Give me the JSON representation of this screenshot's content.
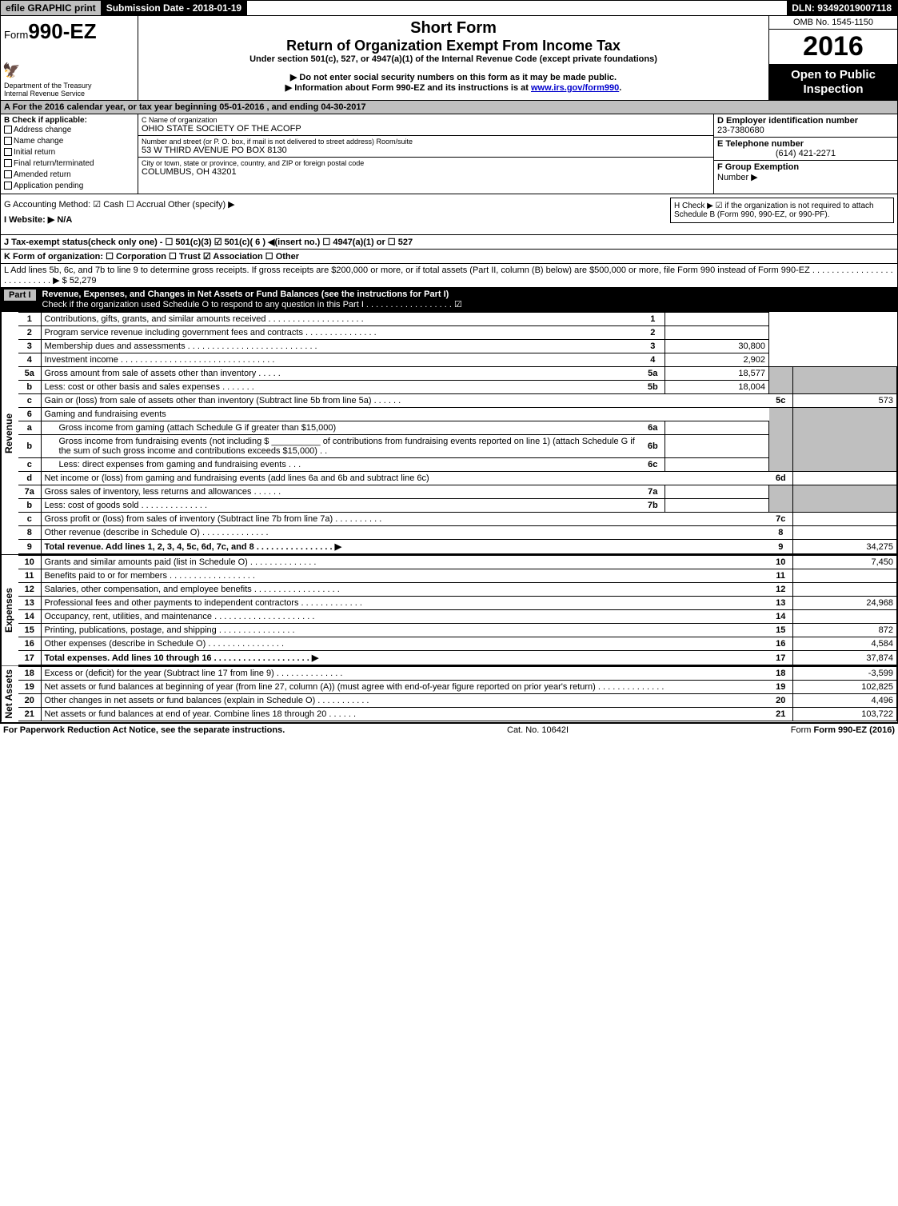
{
  "topbar": {
    "efile": "efile GRAPHIC print",
    "submission": "Submission Date - 2018-01-19",
    "dln": "DLN: 93492019007118"
  },
  "header": {
    "form_prefix": "Form",
    "form_no": "990-EZ",
    "dept1": "Department of the Treasury",
    "dept2": "Internal Revenue Service",
    "short_form": "Short Form",
    "return_title": "Return of Organization Exempt From Income Tax",
    "under": "Under section 501(c), 527, or 4947(a)(1) of the Internal Revenue Code (except private foundations)",
    "do_not": "▶ Do not enter social security numbers on this form as it may be made public.",
    "info": "▶ Information about Form 990-EZ and its instructions is at ",
    "info_link": "www.irs.gov/form990",
    "omb": "OMB No. 1545-1150",
    "year": "2016",
    "open1": "Open to Public",
    "open2": "Inspection"
  },
  "row_a": "A For the 2016 calendar year, or tax year beginning 05-01-2016         , and ending 04-30-2017",
  "col_b": {
    "title": "B Check if applicable:",
    "items": [
      "Address change",
      "Name change",
      "Initial return",
      "Final return/terminated",
      "Amended return",
      "Application pending"
    ]
  },
  "col_c": {
    "name_lab": "C Name of organization",
    "name_val": "OHIO STATE SOCIETY OF THE ACOFP",
    "street_lab": "Number and street (or P. O. box, if mail is not delivered to street address)   Room/suite",
    "street_val": "53 W THIRD AVENUE PO BOX 8130",
    "city_lab": "City or town, state or province, country, and ZIP or foreign postal code",
    "city_val": "COLUMBUS, OH  43201"
  },
  "col_d": {
    "ein_lab": "D Employer identification number",
    "ein_val": "23-7380680",
    "tel_lab": "E Telephone number",
    "tel_val": "(614) 421-2271",
    "grp_lab": "F Group Exemption",
    "grp_lab2": "Number   ▶"
  },
  "ghi": {
    "g": "G Accounting Method:   ☑ Cash   ☐ Accrual   Other (specify) ▶",
    "i": "I Website: ▶ N/A",
    "h": "H  Check ▶  ☑  if the organization is not required to attach Schedule B (Form 990, 990-EZ, or 990-PF)."
  },
  "row_j": "J Tax-exempt status(check only one) -  ☐ 501(c)(3)  ☑ 501(c)( 6 ) ◀(insert no.)  ☐ 4947(a)(1) or  ☐ 527",
  "row_k": "K Form of organization:   ☐ Corporation   ☐ Trust   ☑ Association   ☐ Other",
  "row_l": "L Add lines 5b, 6c, and 7b to line 9 to determine gross receipts. If gross receipts are $200,000 or more, or if total assets (Part II, column (B) below) are $500,000 or more, file Form 990 instead of Form 990-EZ  .  .  .  .  .  .  .  .  .  .  .  .  .  .  .  .  .  .  .  .  .  .  .  .  .  .  .  ▶ $ 52,279",
  "part1": {
    "label": "Part I",
    "title": "Revenue, Expenses, and Changes in Net Assets or Fund Balances (see the instructions for Part I)",
    "check": "Check if the organization used Schedule O to respond to any question in this Part I  .  .  .  .  .  .  .  .  .  .  .  .  .  .  .  .  .  .  ☑"
  },
  "sections": {
    "revenue": "Revenue",
    "expenses": "Expenses",
    "netassets": "Net Assets"
  },
  "lines": {
    "l1": {
      "no": "1",
      "text": "Contributions, gifts, grants, and similar amounts received  .  .  .  .  .  .  .  .  .  .  .  .  .  .  .  .  .  .  .  .",
      "amt": ""
    },
    "l2": {
      "no": "2",
      "text": "Program service revenue including government fees and contracts  .  .  .  .  .  .  .  .  .  .  .  .  .  .  .",
      "amt": ""
    },
    "l3": {
      "no": "3",
      "text": "Membership dues and assessments  .  .  .  .  .  .  .  .  .  .  .  .  .  .  .  .  .  .  .  .  .  .  .  .  .  .  .",
      "amt": "30,800"
    },
    "l4": {
      "no": "4",
      "text": "Investment income  .  .  .  .  .  .  .  .  .  .  .  .  .  .  .  .  .  .  .  .  .  .  .  .  .  .  .  .  .  .  .  .",
      "amt": "2,902"
    },
    "l5a": {
      "no": "5a",
      "text": "Gross amount from sale of assets other than inventory  .  .  .  .  .",
      "sub": "5a",
      "subamt": "18,577"
    },
    "l5b": {
      "no": "b",
      "text": "Less: cost or other basis and sales expenses  .  .  .  .  .  .  .",
      "sub": "5b",
      "subamt": "18,004"
    },
    "l5c": {
      "no": "c",
      "text": "Gain or (loss) from sale of assets other than inventory (Subtract line 5b from line 5a)  .  .  .  .  .  .",
      "right": "5c",
      "amt": "573"
    },
    "l6": {
      "no": "6",
      "text": "Gaming and fundraising events"
    },
    "l6a": {
      "no": "a",
      "text": "Gross income from gaming (attach Schedule G if greater than $15,000)",
      "sub": "6a",
      "subamt": ""
    },
    "l6b": {
      "no": "b",
      "text": "Gross income from fundraising events (not including $ __________ of contributions from fundraising events reported on line 1) (attach Schedule G if the sum of such gross income and contributions exceeds $15,000)   .  .",
      "sub": "6b",
      "subamt": ""
    },
    "l6c": {
      "no": "c",
      "text": "Less: direct expenses from gaming and fundraising events    .  .  .",
      "sub": "6c",
      "subamt": ""
    },
    "l6d": {
      "no": "d",
      "text": "Net income or (loss) from gaming and fundraising events (add lines 6a and 6b and subtract line 6c)",
      "right": "6d",
      "amt": ""
    },
    "l7a": {
      "no": "7a",
      "text": "Gross sales of inventory, less returns and allowances  .  .  .  .  .  .",
      "sub": "7a",
      "subamt": ""
    },
    "l7b": {
      "no": "b",
      "text": "Less: cost of goods sold         .  .  .  .  .  .  .  .  .  .  .  .  .  .",
      "sub": "7b",
      "subamt": ""
    },
    "l7c": {
      "no": "c",
      "text": "Gross profit or (loss) from sales of inventory (Subtract line 7b from line 7a)  .  .  .  .  .  .  .  .  .  .",
      "right": "7c",
      "amt": ""
    },
    "l8": {
      "no": "8",
      "text": "Other revenue (describe in Schedule O)                             .  .  .  .  .  .  .  .  .  .  .  .  .  .",
      "amt": ""
    },
    "l9": {
      "no": "9",
      "text": "Total revenue. Add lines 1, 2, 3, 4, 5c, 6d, 7c, and 8  .  .  .  .  .  .  .  .  .  .  .  .  .  .  .  .           ▶",
      "amt": "34,275",
      "bold": true
    },
    "l10": {
      "no": "10",
      "text": "Grants and similar amounts paid (list in Schedule O)          .  .  .  .  .  .  .  .  .  .  .  .  .  .",
      "amt": "7,450"
    },
    "l11": {
      "no": "11",
      "text": "Benefits paid to or for members                  .  .  .  .  .  .  .  .  .  .  .  .  .  .  .  .  .  .",
      "amt": ""
    },
    "l12": {
      "no": "12",
      "text": "Salaries, other compensation, and employee benefits  .  .  .  .  .  .  .  .  .  .  .  .  .  .  .  .  .  .",
      "amt": ""
    },
    "l13": {
      "no": "13",
      "text": "Professional fees and other payments to independent contractors   .  .  .  .  .  .  .  .  .  .  .  .  .",
      "amt": "24,968"
    },
    "l14": {
      "no": "14",
      "text": "Occupancy, rent, utilities, and maintenance  .  .  .  .  .  .  .  .  .  .  .  .  .  .  .  .  .  .  .  .  .",
      "amt": ""
    },
    "l15": {
      "no": "15",
      "text": "Printing, publications, postage, and shipping           .  .  .  .  .  .  .  .  .  .  .  .  .  .  .  .",
      "amt": "872"
    },
    "l16": {
      "no": "16",
      "text": "Other expenses (describe in Schedule O)               .  .  .  .  .  .  .  .  .  .  .  .  .  .  .  .",
      "amt": "4,584"
    },
    "l17": {
      "no": "17",
      "text": "Total expenses. Add lines 10 through 16        .  .  .  .  .  .  .  .  .  .  .  .  .  .  .  .  .  .  .  .  ▶",
      "amt": "37,874",
      "bold": true
    },
    "l18": {
      "no": "18",
      "text": "Excess or (deficit) for the year (Subtract line 17 from line 9)      .  .  .  .  .  .  .  .  .  .  .  .  .  .",
      "amt": "-3,599"
    },
    "l19": {
      "no": "19",
      "text": "Net assets or fund balances at beginning of year (from line 27, column (A)) (must agree with end-of-year figure reported on prior year's return)              .  .  .  .  .  .  .  .  .  .  .  .  .  .",
      "amt": "102,825"
    },
    "l20": {
      "no": "20",
      "text": "Other changes in net assets or fund balances (explain in Schedule O)    .  .  .  .  .  .  .  .  .  .  .",
      "amt": "4,496"
    },
    "l21": {
      "no": "21",
      "text": "Net assets or fund balances at end of year. Combine lines 18 through 20          .  .  .  .  .  .",
      "amt": "103,722"
    }
  },
  "footer": {
    "left": "For Paperwork Reduction Act Notice, see the separate instructions.",
    "mid": "Cat. No. 10642I",
    "right": "Form 990-EZ (2016)"
  },
  "colors": {
    "grey": "#bfbfbf",
    "black": "#000000",
    "link": "#0000cc"
  }
}
